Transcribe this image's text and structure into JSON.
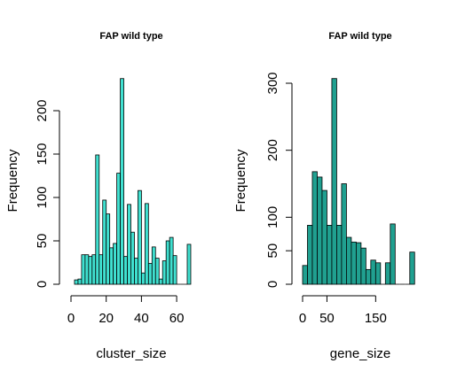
{
  "chart_data": [
    {
      "type": "bar",
      "title": "FAP wild type",
      "xlabel": "cluster_size",
      "ylabel": "Frequency",
      "color": "#40E0D0",
      "bin_width": 2,
      "bin_start": 2,
      "xlim": [
        0,
        66
      ],
      "ylim": [
        0,
        240
      ],
      "xticks": [
        0,
        20,
        40,
        60
      ],
      "yticks": [
        0,
        50,
        100,
        150,
        200
      ],
      "values": [
        5,
        6,
        34,
        34,
        32,
        34,
        149,
        34,
        97,
        81,
        42,
        47,
        128,
        237,
        32,
        92,
        60,
        30,
        108,
        13,
        93,
        24,
        43,
        30,
        6,
        27,
        50,
        54,
        33,
        0,
        0,
        0,
        46
      ]
    },
    {
      "type": "bar",
      "title": "FAP wild type",
      "xlabel": "gene_size",
      "ylabel": "Frequency",
      "color": "#20A090",
      "bin_width": 10,
      "bin_start": 0,
      "xlim": [
        0,
        235
      ],
      "ylim": [
        0,
        310
      ],
      "xticks": [
        0,
        50,
        150
      ],
      "yticks": [
        0,
        50,
        100,
        200,
        300
      ],
      "values": [
        28,
        88,
        168,
        160,
        140,
        88,
        307,
        88,
        150,
        70,
        63,
        62,
        54,
        22,
        36,
        32,
        0,
        32,
        90,
        0,
        0,
        0,
        48
      ]
    }
  ]
}
